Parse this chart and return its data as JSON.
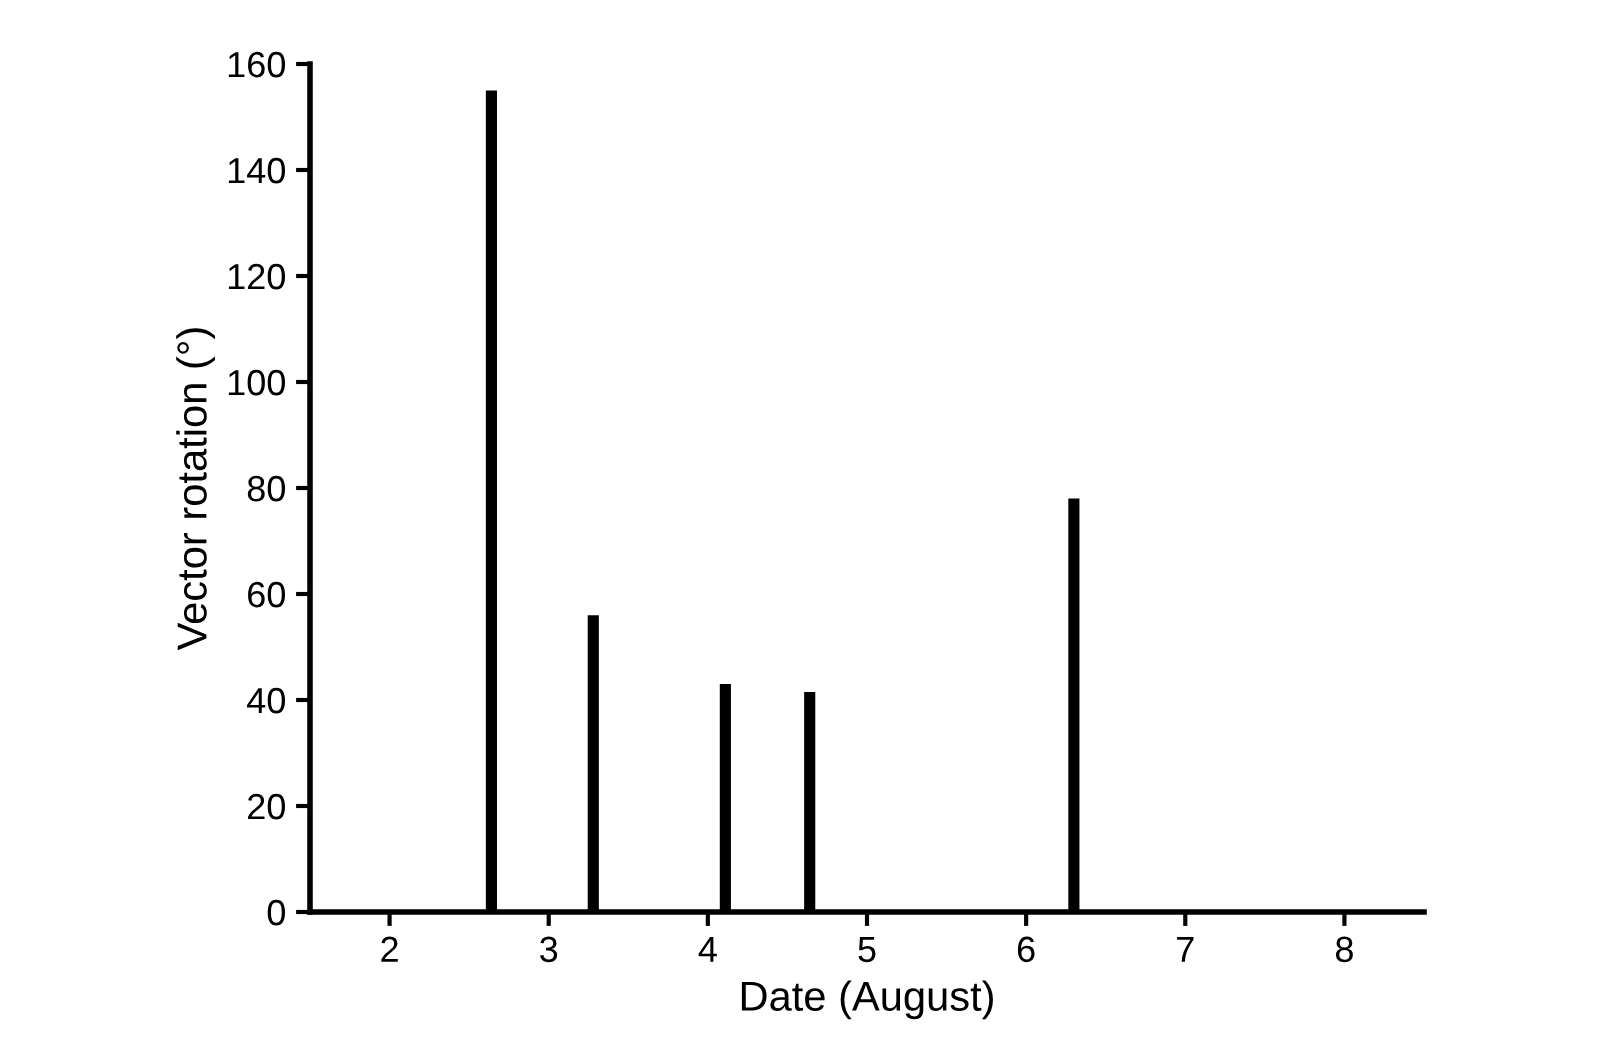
{
  "chart_data": {
    "type": "bar",
    "xlabel": "Date (August)",
    "ylabel": "Vector rotation (°)",
    "x": [
      2.64,
      3.28,
      4.11,
      4.64,
      6.3
    ],
    "values": [
      155,
      56,
      43,
      41.5,
      78
    ],
    "color": "#000000",
    "xlim": [
      1.5,
      8.5
    ],
    "xticks": [
      2,
      3,
      4,
      5,
      6,
      7,
      8
    ],
    "ylim": [
      0,
      160
    ],
    "yticks": [
      0,
      20,
      40,
      60,
      80,
      100,
      120,
      140,
      160
    ],
    "grid": false,
    "legend": false
  }
}
